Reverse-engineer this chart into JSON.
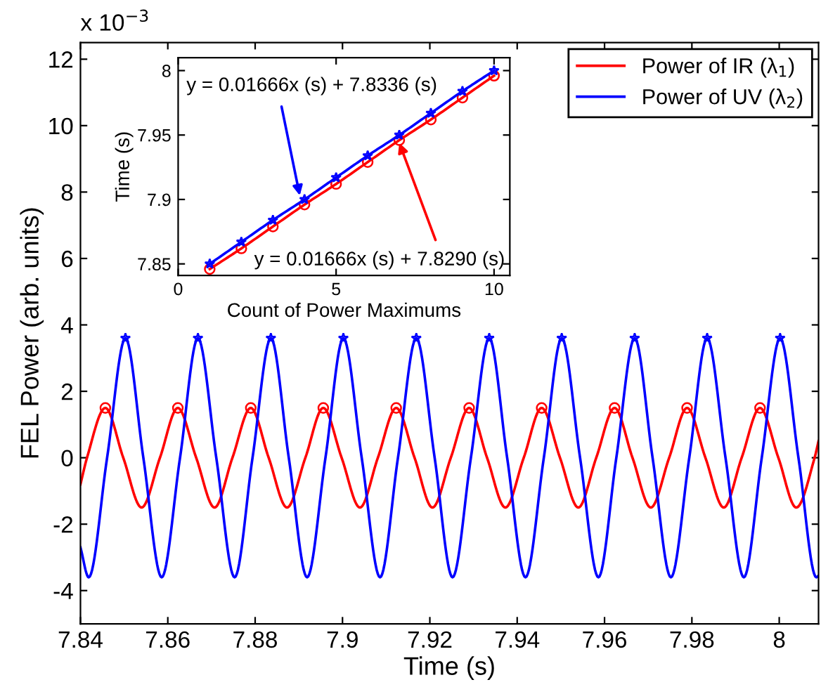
{
  "chart_data": [
    {
      "type": "line",
      "xlabel": "Time (s)",
      "ylabel": "FEL Power (arb. units)",
      "annotations": [
        "x 10$^{−3}$"
      ],
      "xlim": [
        7.84,
        8.009
      ],
      "xticks": [
        7.84,
        7.86,
        7.88,
        7.9,
        7.92,
        7.94,
        7.96,
        7.98,
        8
      ],
      "ylim": [
        -5,
        12.5
      ],
      "yticks": [
        -4,
        -2,
        0,
        2,
        4,
        6,
        8,
        10,
        12
      ],
      "grid": false,
      "legend": "top right",
      "marker": "none",
      "line_style": "solid",
      "series": [
        {
          "name": "Power of IR (λ$_{1}$)",
          "color": "#ff0000",
          "type": "line",
          "x": [
            7.84,
            7.8415,
            7.8457,
            7.8498,
            7.854,
            7.8582,
            7.8623,
            7.8665,
            7.8707,
            7.8748,
            7.879,
            7.8831,
            7.8873,
            7.8915,
            7.8956,
            7.8998,
            7.904,
            7.9081,
            7.9123,
            7.9165,
            7.9206,
            7.9248,
            7.929,
            7.9331,
            7.9373,
            7.9415,
            7.9456,
            7.9498,
            7.954,
            7.9581,
            7.9623,
            7.9664,
            7.9706,
            7.9748,
            7.9789,
            7.9831,
            7.9873,
            7.9914,
            7.9956,
            7.9998,
            8.0039,
            8.0081,
            8.009
          ],
          "values": [
            -0.8,
            0,
            1.5,
            0,
            -1.5,
            0,
            1.5,
            0,
            -1.5,
            0,
            1.5,
            0,
            -1.5,
            0,
            1.5,
            0,
            -1.5,
            0,
            1.5,
            0,
            -1.5,
            0,
            1.5,
            0,
            -1.5,
            0,
            1.5,
            0,
            -1.5,
            0,
            1.5,
            0,
            -1.5,
            0,
            1.5,
            0,
            -1.5,
            0,
            1.5,
            0,
            -1.5,
            0,
            0.5
          ]
        },
        {
          "name": "Power of UV (λ$_{2}$)",
          "color": "#0000ff",
          "type": "line",
          "x": [
            7.84,
            7.8419,
            7.8461,
            7.8503,
            7.8544,
            7.8586,
            7.8628,
            7.8669,
            7.8711,
            7.8753,
            7.8794,
            7.8836,
            7.8877,
            7.8919,
            7.8961,
            7.9002,
            7.9044,
            7.9086,
            7.9127,
            7.9169,
            7.9211,
            7.9252,
            7.9294,
            7.9336,
            7.9377,
            7.9419,
            7.9461,
            7.9502,
            7.9544,
            7.9586,
            7.9627,
            7.9669,
            7.971,
            7.9752,
            7.9794,
            7.9835,
            7.9877,
            7.9919,
            7.996,
            8.0002,
            8.0044,
            8.0085,
            8.009
          ],
          "values": [
            -2.7,
            -3.6,
            0,
            3.6,
            0,
            -3.6,
            0,
            3.6,
            0,
            -3.6,
            0,
            3.6,
            0,
            -3.6,
            0,
            3.6,
            0,
            -3.6,
            0,
            3.6,
            0,
            -3.6,
            0,
            3.6,
            0,
            -3.6,
            0,
            3.6,
            0,
            -3.6,
            0,
            3.6,
            0,
            -3.6,
            0,
            3.6,
            0,
            -3.6,
            0,
            3.6,
            0,
            -3.6,
            -3.55
          ]
        },
        {
          "color": "#ff0000",
          "type": "scatter",
          "marker": "circle",
          "x": [
            7.8457,
            7.8623,
            7.879,
            7.8956,
            7.9123,
            7.929,
            7.9456,
            7.9623,
            7.9789,
            7.9956
          ],
          "values": [
            1.5,
            1.5,
            1.5,
            1.5,
            1.5,
            1.5,
            1.5,
            1.5,
            1.5,
            1.5
          ]
        },
        {
          "color": "#0000ff",
          "type": "scatter",
          "marker": "star",
          "x": [
            7.8503,
            7.8669,
            7.8836,
            7.9002,
            7.9169,
            7.9336,
            7.9502,
            7.9669,
            7.9835,
            8.0002
          ],
          "values": [
            3.6,
            3.6,
            3.6,
            3.6,
            3.6,
            3.6,
            3.6,
            3.6,
            3.6,
            3.6
          ]
        }
      ]
    },
    {
      "type": "line",
      "xlabel": "Count of Power Maximums",
      "ylabel": "Time (s)",
      "annotations": [
        {
          "text": "y = 0.01666x (s) + 7.8336 (s)",
          "x": 3.85,
          "y": 7.903
        },
        {
          "text": "y = 0.01666x (s) + 7.8290 (s)",
          "x": 7,
          "y": 7.944
        }
      ],
      "x": [
        1,
        2,
        3,
        4,
        5,
        6,
        7,
        8,
        9,
        10
      ],
      "xlim": [
        0,
        10.5
      ],
      "xticks": [
        0,
        5,
        10
      ],
      "ylim": [
        7.841,
        8.01
      ],
      "yticks": [
        7.85,
        7.9,
        7.95,
        8
      ],
      "grid": false,
      "line_style": "solid",
      "series": [
        {
          "color": "#ff0000",
          "marker": "circle",
          "values": [
            7.846,
            7.862,
            7.879,
            7.896,
            7.912,
            7.929,
            7.946,
            7.962,
            7.979,
            7.996
          ]
        },
        {
          "color": "#0000ff",
          "marker": "star",
          "values": [
            7.85,
            7.867,
            7.884,
            7.9,
            7.917,
            7.934,
            7.95,
            7.967,
            7.984,
            8.0
          ]
        }
      ]
    }
  ]
}
